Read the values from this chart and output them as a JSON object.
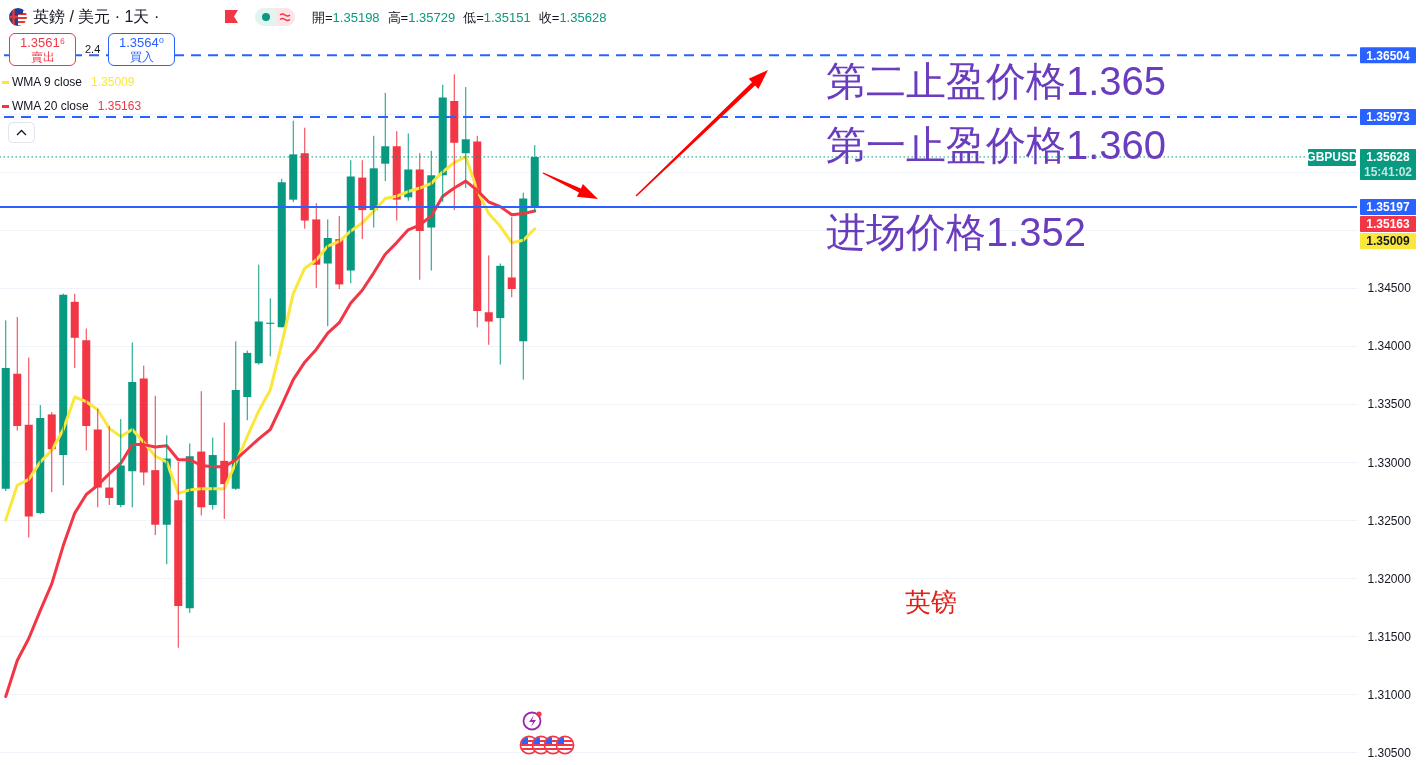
{
  "chart_data": {
    "type": "candlestick",
    "title": "英鎊 / 美元 · 1天 ·",
    "subtitle": "開=1.35198 高=1.35729 低=1.35151 收=1.35628",
    "categories": [
      null,
      null,
      null,
      null,
      null,
      null,
      null,
      null,
      null,
      null,
      null,
      null,
      null,
      null,
      null,
      null,
      null,
      null,
      null,
      null,
      null,
      null,
      null,
      null,
      null,
      null,
      null,
      null,
      null,
      null,
      null,
      null,
      null,
      null,
      null,
      null,
      null,
      null,
      null,
      null,
      null,
      null,
      null,
      null,
      null,
      null,
      null,
      null,
      null,
      null,
      null,
      null,
      null,
      null,
      null,
      null,
      null,
      null,
      null,
      null,
      null,
      null,
      null,
      null,
      null,
      null,
      null,
      null,
      null,
      null,
      null,
      null,
      null,
      null,
      null,
      null,
      null,
      null,
      null,
      null,
      null,
      null,
      null,
      null,
      null,
      null,
      null,
      null,
      null,
      null,
      null,
      null,
      null,
      null,
      null,
      null,
      null,
      null,
      null,
      null,
      null,
      null,
      null,
      null,
      null,
      null,
      null,
      null,
      null,
      null,
      null,
      null,
      null,
      null,
      null,
      null,
      null,
      null
    ],
    "ohlc": [
      [
        1.3277,
        1.3422,
        1.3275,
        1.3381
      ],
      [
        1.3376,
        1.3425,
        1.3327,
        1.3331
      ],
      [
        1.3332,
        1.339,
        1.3235,
        1.3253
      ],
      [
        1.3256,
        1.3349,
        1.3255,
        1.3338
      ],
      [
        1.3341,
        1.3343,
        1.3274,
        1.3311
      ],
      [
        1.3306,
        1.3445,
        1.328,
        1.3444
      ],
      [
        1.3438,
        1.3445,
        1.3381,
        1.3407
      ],
      [
        1.3405,
        1.3415,
        1.331,
        1.3331
      ],
      [
        1.3328,
        1.3346,
        1.3261,
        1.3278
      ],
      [
        1.3278,
        1.3331,
        1.3263,
        1.3269
      ],
      [
        1.3263,
        1.3337,
        1.3261,
        1.3297
      ],
      [
        1.3292,
        1.3403,
        1.3261,
        1.3369
      ],
      [
        1.3372,
        1.3383,
        1.328,
        1.3291
      ],
      [
        1.3293,
        1.3357,
        1.3237,
        1.3246
      ],
      [
        1.3246,
        1.3323,
        1.3212,
        1.3303
      ],
      [
        1.3267,
        1.33,
        1.314,
        1.3176
      ],
      [
        1.3174,
        1.3316,
        1.317,
        1.3305
      ],
      [
        1.3309,
        1.3361,
        1.3254,
        1.3261
      ],
      [
        1.3263,
        1.3321,
        1.3259,
        1.3306
      ],
      [
        1.3301,
        1.3334,
        1.3251,
        1.3281
      ],
      [
        1.3277,
        1.3404,
        1.3276,
        1.3362
      ],
      [
        1.3356,
        1.3396,
        1.3336,
        1.3394
      ],
      [
        1.3385,
        1.347,
        1.3384,
        1.3421
      ],
      [
        1.3419,
        1.3441,
        1.3391,
        1.342
      ],
      [
        1.3416,
        1.3544,
        1.3416,
        1.3541
      ],
      [
        1.3526,
        1.3594,
        1.3524,
        1.3565
      ],
      [
        1.3566,
        1.3588,
        1.3501,
        1.3508
      ],
      [
        1.3509,
        1.3523,
        1.345,
        1.347
      ],
      [
        1.3471,
        1.3509,
        1.3417,
        1.3493
      ],
      [
        1.3492,
        1.3512,
        1.3449,
        1.3453
      ],
      [
        1.3465,
        1.356,
        1.3454,
        1.3546
      ],
      [
        1.3545,
        1.356,
        1.3492,
        1.3517
      ],
      [
        1.3517,
        1.3581,
        1.3502,
        1.3553
      ],
      [
        1.3557,
        1.3618,
        1.3542,
        1.3572
      ],
      [
        1.3572,
        1.3585,
        1.3508,
        1.3526
      ],
      [
        1.3528,
        1.3583,
        1.3525,
        1.3552
      ],
      [
        1.3552,
        1.3566,
        1.3457,
        1.3499
      ],
      [
        1.3502,
        1.3568,
        1.3465,
        1.3547
      ],
      [
        1.3547,
        1.3625,
        1.3524,
        1.3614
      ],
      [
        1.3611,
        1.3634,
        1.3517,
        1.3575
      ],
      [
        1.3566,
        1.3623,
        1.3536,
        1.3578
      ],
      [
        1.3576,
        1.3581,
        1.3416,
        1.343
      ],
      [
        1.3429,
        1.3478,
        1.3401,
        1.3421
      ],
      [
        1.3424,
        1.3471,
        1.3384,
        1.3469
      ],
      [
        1.3459,
        1.3511,
        1.3442,
        1.3449
      ],
      [
        1.3404,
        1.3532,
        1.3371,
        1.3527
      ],
      [
        1.35198,
        1.35729,
        1.35151,
        1.35628
      ],
      null,
      null,
      null,
      null,
      null,
      null,
      null,
      null,
      null,
      null,
      null,
      null,
      null,
      null,
      null,
      null,
      null,
      null,
      null,
      null,
      null,
      null,
      null,
      null,
      null,
      null,
      null,
      null,
      null,
      null,
      null,
      null,
      null,
      null,
      null,
      null,
      null,
      null,
      null,
      null,
      null,
      null,
      null,
      null,
      null,
      null,
      null,
      null,
      null,
      null,
      null,
      null,
      null,
      null,
      null,
      null,
      null,
      null,
      null,
      null,
      null,
      null,
      null,
      null,
      null,
      null,
      null,
      null,
      null,
      null,
      null
    ],
    "colors": [
      "#089981",
      "#f23645",
      "#f23645",
      "#089981",
      "#f23645",
      "#089981",
      "#f23645",
      "#f23645",
      "#f23645",
      "#f23645",
      "#089981",
      "#089981",
      "#f23645",
      "#f23645",
      "#089981",
      "#f23645",
      "#089981",
      "#f23645",
      "#089981",
      "#f23645",
      "#089981",
      "#089981",
      "#089981",
      "#089981",
      "#089981",
      "#089981",
      "#f23645",
      "#f23645",
      "#089981",
      "#f23645",
      "#089981",
      "#f23645",
      "#089981",
      "#089981",
      "#f23645",
      "#089981",
      "#f23645",
      "#089981",
      "#089981",
      "#f23645",
      "#089981",
      "#f23645",
      "#f23645",
      "#089981",
      "#f23645",
      "#089981",
      "#089981",
      null,
      null,
      null,
      null,
      null,
      null,
      null,
      null,
      null,
      null,
      null,
      null,
      null,
      null,
      null,
      null,
      null,
      null,
      null,
      null,
      null,
      null,
      null,
      null,
      null,
      null,
      null,
      null,
      null,
      null,
      null,
      null,
      null,
      null,
      null,
      null,
      null,
      null,
      null,
      null,
      null,
      null,
      null,
      null,
      null,
      null,
      null,
      null,
      null,
      null,
      null,
      null,
      null,
      null,
      null,
      null,
      null,
      null,
      null,
      null,
      null,
      null,
      null,
      null,
      null,
      null,
      null,
      null,
      null,
      null,
      null
    ],
    "series": [
      {
        "name": "WMA 9 close",
        "type": "line",
        "color": "#fbe73c",
        "values": [
          1.325,
          1.328,
          1.3285,
          1.33,
          1.331,
          1.3328,
          1.3356,
          1.3352,
          1.3345,
          1.3329,
          1.3322,
          1.3328,
          1.3317,
          1.3305,
          1.33,
          1.3273,
          1.3276,
          1.3277,
          1.3277,
          1.3277,
          1.3299,
          1.3322,
          1.3344,
          1.3362,
          1.3402,
          1.3445,
          1.3467,
          1.3474,
          1.3486,
          1.349,
          1.3499,
          1.3506,
          1.3516,
          1.3527,
          1.3529,
          1.3533,
          1.3536,
          1.354,
          1.355,
          1.3558,
          1.3563,
          1.3534,
          1.3514,
          1.3503,
          1.3489,
          1.3491,
          1.35009,
          null,
          null,
          null,
          null,
          null,
          null,
          null,
          null,
          null,
          null,
          null,
          null,
          null,
          null,
          null,
          null,
          null,
          null,
          null,
          null,
          null,
          null,
          null,
          null,
          null,
          null,
          null,
          null,
          null,
          null,
          null,
          null,
          null,
          null,
          null,
          null,
          null,
          null,
          null,
          null,
          null,
          null,
          null,
          null,
          null,
          null,
          null,
          null,
          null,
          null,
          null,
          null,
          null,
          null,
          null,
          null,
          null,
          null,
          null,
          null,
          null,
          null,
          null,
          null,
          null,
          null,
          null,
          null,
          null,
          null,
          null
        ]
      },
      {
        "name": "WMA 20 close",
        "type": "line",
        "color": "#f23645",
        "values": [
          1.3098,
          1.3129,
          1.3148,
          1.3172,
          1.3195,
          1.3228,
          1.3256,
          1.3272,
          1.328,
          1.329,
          1.3299,
          1.3315,
          1.3315,
          1.3313,
          1.3314,
          1.3302,
          1.3302,
          1.3297,
          1.3296,
          1.3296,
          1.3302,
          1.3311,
          1.332,
          1.3328,
          1.3349,
          1.3371,
          1.3386,
          1.3397,
          1.3411,
          1.342,
          1.3437,
          1.3448,
          1.3463,
          1.3479,
          1.3489,
          1.35,
          1.3504,
          1.3512,
          1.3529,
          1.3536,
          1.3542,
          1.3534,
          1.3524,
          1.352,
          1.3513,
          1.3514,
          1.35163,
          null,
          null,
          null,
          null,
          null,
          null,
          null,
          null,
          null,
          null,
          null,
          null,
          null,
          null,
          null,
          null,
          null,
          null,
          null,
          null,
          null,
          null,
          null,
          null,
          null,
          null,
          null,
          null,
          null,
          null,
          null,
          null,
          null,
          null,
          null,
          null,
          null,
          null,
          null,
          null,
          null,
          null,
          null,
          null,
          null,
          null,
          null,
          null,
          null,
          null,
          null,
          null,
          null,
          null,
          null,
          null,
          null,
          null,
          null,
          null,
          null,
          null,
          null,
          null,
          null,
          null,
          null,
          null,
          null,
          null,
          null
        ]
      }
    ],
    "ylim": [
      1.3039,
      1.3698
    ],
    "yticks": [
      {
        "value": 1.305,
        "label": "1.30500"
      },
      {
        "value": 1.31,
        "label": "1.31000"
      },
      {
        "value": 1.315,
        "label": "1.31500"
      },
      {
        "value": 1.32,
        "label": "1.32000"
      },
      {
        "value": 1.325,
        "label": "1.32500"
      },
      {
        "value": 1.33,
        "label": "1.33000"
      },
      {
        "value": 1.335,
        "label": "1.33500"
      },
      {
        "value": 1.34,
        "label": "1.34000"
      },
      {
        "value": 1.345,
        "label": "1.34500"
      },
      {
        "value": 1.35,
        "label": null
      },
      {
        "value": 1.355,
        "label": null
      },
      {
        "value": 1.36,
        "label": null
      }
    ],
    "tick_labels": "y",
    "grid": "y",
    "legend": "top left",
    "ref_lines": [
      {
        "axis": "y",
        "value": 1.36504,
        "label": "1.36504",
        "color": "#2962ff",
        "line_style": "dashed"
      },
      {
        "axis": "y",
        "value": 1.35973,
        "label": "1.35973",
        "color": "#2962ff",
        "line_style": "dashed"
      },
      {
        "axis": "y",
        "value": 1.35628,
        "label": "1.35628",
        "color": "#089981",
        "line_style": "dotted"
      },
      {
        "axis": "y",
        "value": 1.35197,
        "label": "1.35197",
        "color": "#2962ff",
        "line_style": "solid"
      }
    ],
    "annotations": [
      "1.3561⁶",
      "賣出",
      "2.4",
      "1.3564⁰",
      "買入",
      "第二止盈价格1.365",
      "第一止盈价格1.360",
      "进场价格1.352",
      "英镑",
      "15:41:02",
      "GBPUSD",
      "1.35009",
      "1.35163"
    ]
  }
}
